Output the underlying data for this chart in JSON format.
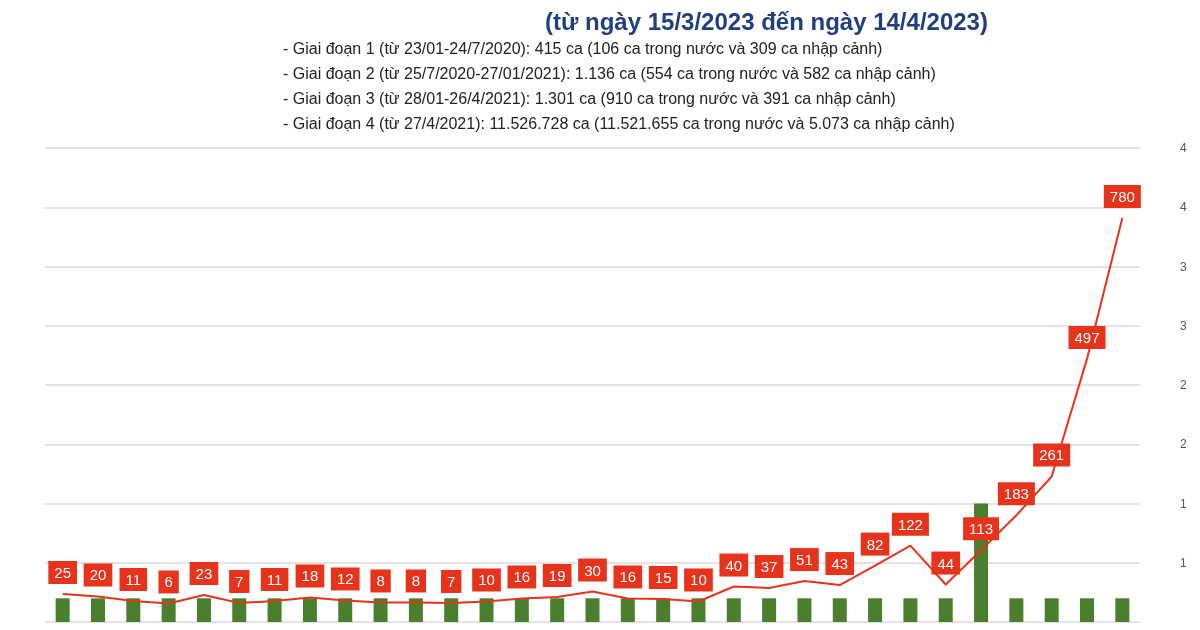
{
  "chart_data": {
    "type": "line",
    "title": "(từ ngày 15/3/2023 đến ngày 14/4/2023)",
    "annotations": [
      "- Giai đoạn 1 (từ 23/01-24/7/2020): 415 ca (106 ca trong nước và 309 ca nhập cảnh)",
      "- Giai đoạn 2 (từ 25/7/2020-27/01/2021): 1.136 ca (554 ca trong nước và 582 ca nhập cảnh)",
      "- Giai đoạn 3 (từ 28/01-26/4/2021): 1.301 ca (910 ca trong nước và 391 ca nhập cảnh)",
      "- Giai đoạn 4 (từ 27/4/2021): 11.526.728 ca (11.521.655 ca trong nước và 5.073 ca nhập cảnh)"
    ],
    "categories": [
      null,
      null,
      null,
      null,
      null,
      null,
      null,
      null,
      null,
      null,
      null,
      null,
      null,
      null,
      null,
      null,
      null,
      null,
      null,
      null,
      null,
      null,
      null,
      null,
      null,
      null,
      null,
      null,
      null,
      null,
      null
    ],
    "series": [
      {
        "type": "bar",
        "axis": "y2",
        "color": "#4a7f2e",
        "values": [
          0.7,
          0.7,
          0.7,
          0.7,
          0.7,
          0.7,
          0.7,
          0.7,
          0.7,
          0.7,
          0.7,
          0.7,
          0.7,
          0.7,
          0.7,
          0.7,
          0.7,
          0.7,
          0.7,
          0.7,
          0.7,
          0.7,
          0.7,
          0.7,
          0.7,
          0.7,
          1.5,
          0.7,
          0.7,
          0.7,
          0.7
        ]
      },
      {
        "color": "#e8331c",
        "values": [
          25,
          20,
          11,
          6,
          23,
          7,
          11,
          18,
          12,
          8,
          8,
          7,
          10,
          16,
          19,
          30,
          16,
          15,
          10,
          40,
          37,
          51,
          43,
          82,
          122,
          44,
          113,
          183,
          261,
          497,
          780
        ],
        "value_labels": [
          "25",
          "20",
          "11",
          "6",
          "23",
          "7",
          "11",
          "18",
          "12",
          "8",
          "8",
          "7",
          "10",
          "16",
          "19",
          "30",
          "16",
          "15",
          "10",
          "40",
          "37",
          "51",
          "43",
          "82",
          "122",
          "44",
          "113",
          "183",
          "261",
          "497",
          "780"
        ]
      }
    ],
    "y2lim": [
      0.5,
      4.5
    ],
    "y2ticks": [
      {
        "value": 0.5,
        "label": null
      },
      {
        "value": 1,
        "label": "1"
      },
      {
        "value": 1.5,
        "label": "1"
      },
      {
        "value": 2,
        "label": "2"
      },
      {
        "value": 2.5,
        "label": "2"
      },
      {
        "value": 3,
        "label": "3"
      },
      {
        "value": 3.5,
        "label": "3"
      },
      {
        "value": 4,
        "label": "4"
      },
      {
        "value": 4.5,
        "label": "4"
      }
    ],
    "grid": true,
    "marker": "none"
  }
}
